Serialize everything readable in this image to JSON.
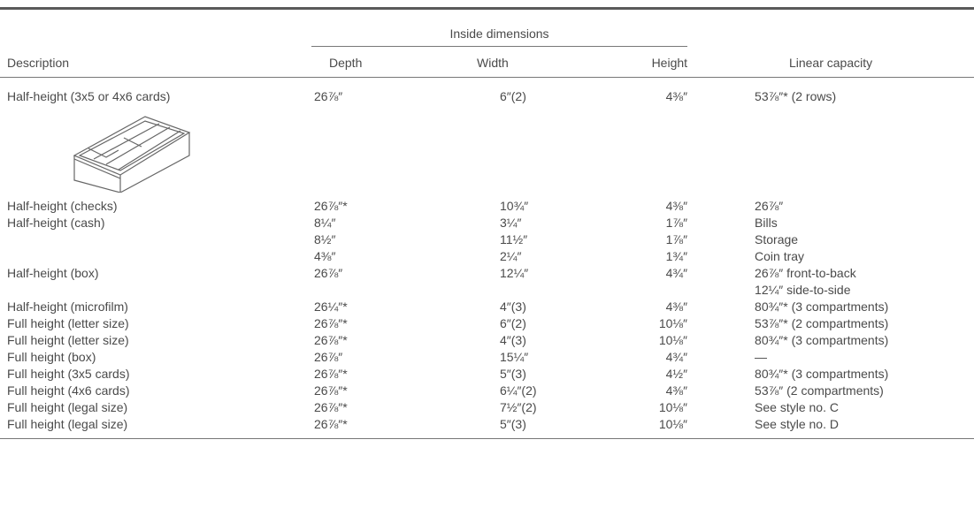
{
  "table": {
    "group_header": "Inside dimensions",
    "columns": [
      "Description",
      "Depth",
      "Width",
      "Height",
      "Linear capacity"
    ],
    "rows": [
      [
        "Half-height (3x5 or 4x6 cards)",
        "26⅞″",
        "6″(2)",
        "4⅜″",
        "53⅞″* (2 rows)"
      ],
      [
        "Half-height (checks)",
        "26⅞″*",
        "10¾″",
        "4⅜″",
        "26⅞″"
      ],
      [
        "Half-height (cash)",
        [
          "8¼″",
          "8½″",
          "4⅜″"
        ],
        [
          "3¼″",
          "11½″",
          "2¼″"
        ],
        [
          "1⅞″",
          "1⅞″",
          "1¾″"
        ],
        [
          "Bills",
          "Storage",
          "Coin tray"
        ]
      ],
      [
        "Half-height (box)",
        "26⅞″",
        "12¼″",
        "4¾″",
        [
          "26⅞″ front-to-back",
          "12¼″ side-to-side"
        ]
      ],
      [
        "Half-height (microfilm)",
        "26¼″*",
        "4″(3)",
        "4⅜″",
        "80¾″* (3 compartments)"
      ],
      [
        "Full height (letter size)",
        "26⅞″*",
        "6″(2)",
        "10⅛″",
        "53⅞″* (2 compartments)"
      ],
      [
        "Full height (letter size)",
        "26⅞″*",
        "4″(3)",
        "10⅛″",
        "80¾″* (3 compartments)"
      ],
      [
        "Full height (box)",
        "26⅞″",
        "15¼″",
        "4¾″",
        "—"
      ],
      [
        "Full height (3x5 cards)",
        "26⅞″*",
        "5″(3)",
        "4½″",
        "80¾″* (3 compartments)"
      ],
      [
        "Full height (4x6 cards)",
        "26⅞″*",
        "6¼″(2)",
        "4⅜″",
        "53⅞″ (2 compartments)"
      ],
      [
        "Full height (legal size)",
        "26⅞″*",
        "7½″(2)",
        "10⅛″",
        "See style no. C"
      ],
      [
        "Full height (legal size)",
        "26⅞″*",
        "5″(3)",
        "10⅛″",
        "See style no. D"
      ]
    ]
  }
}
